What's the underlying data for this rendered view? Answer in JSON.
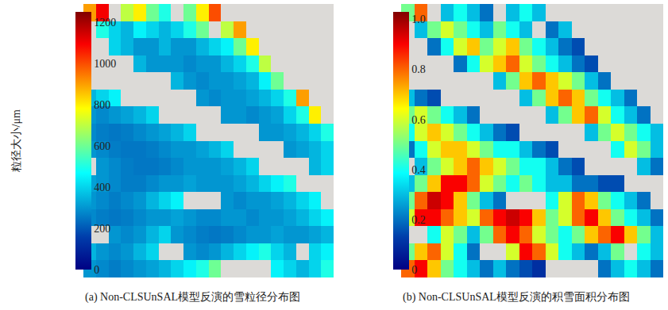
{
  "chart_data": [
    {
      "type": "heatmap",
      "title": "(a) Non-CLSUnSAL模型反演的雪粒径分布图",
      "colorbar_title": "粒径大小/μm",
      "colorbar_range": [
        0,
        1250
      ],
      "colorbar_ticks": [
        0,
        200,
        400,
        600,
        800,
        1000,
        1200
      ],
      "tick_labels": false,
      "cells": [
        [
          900,
          1100,
          null,
          700,
          800,
          600,
          500,
          null,
          600,
          800,
          1000,
          null,
          null,
          null,
          null,
          null,
          null,
          null,
          null,
          null
        ],
        [
          null,
          500,
          400,
          350,
          450,
          400,
          350,
          400,
          500,
          600,
          null,
          700,
          900,
          null,
          null,
          null,
          null,
          null,
          null,
          null
        ],
        [
          null,
          null,
          400,
          350,
          300,
          300,
          350,
          300,
          300,
          350,
          400,
          450,
          600,
          800,
          null,
          null,
          null,
          null,
          null,
          null
        ],
        [
          null,
          null,
          null,
          null,
          350,
          300,
          300,
          300,
          280,
          300,
          300,
          350,
          400,
          500,
          700,
          null,
          null,
          null,
          null,
          null
        ],
        [
          null,
          null,
          null,
          null,
          null,
          null,
          null,
          350,
          300,
          280,
          300,
          300,
          320,
          350,
          450,
          600,
          null,
          null,
          null,
          null
        ],
        [
          350,
          400,
          450,
          null,
          null,
          null,
          null,
          null,
          null,
          300,
          280,
          300,
          300,
          320,
          350,
          400,
          500,
          900,
          null,
          null
        ],
        [
          300,
          280,
          300,
          320,
          350,
          400,
          null,
          null,
          null,
          null,
          null,
          300,
          300,
          280,
          300,
          320,
          400,
          500,
          800,
          null
        ],
        [
          280,
          260,
          250,
          260,
          280,
          300,
          320,
          350,
          400,
          null,
          null,
          null,
          null,
          null,
          300,
          300,
          320,
          350,
          400,
          500
        ],
        [
          300,
          280,
          260,
          250,
          250,
          260,
          280,
          300,
          300,
          320,
          350,
          400,
          null,
          null,
          null,
          null,
          300,
          320,
          350,
          400
        ],
        [
          null,
          300,
          280,
          260,
          250,
          250,
          260,
          280,
          300,
          300,
          300,
          320,
          350,
          400,
          null,
          null,
          null,
          null,
          350,
          400
        ],
        [
          320,
          300,
          280,
          260,
          260,
          280,
          300,
          300,
          320,
          300,
          300,
          300,
          320,
          350,
          400,
          450,
          500,
          null,
          null,
          null
        ],
        [
          300,
          280,
          260,
          280,
          300,
          350,
          400,
          450,
          null,
          null,
          null,
          300,
          280,
          300,
          300,
          320,
          350,
          400,
          450,
          null
        ],
        [
          280,
          260,
          250,
          260,
          280,
          300,
          300,
          320,
          300,
          280,
          280,
          300,
          300,
          280,
          300,
          300,
          320,
          350,
          400,
          450
        ],
        [
          null,
          null,
          300,
          280,
          300,
          350,
          400,
          300,
          280,
          260,
          250,
          260,
          280,
          300,
          300,
          320,
          300,
          300,
          320,
          350
        ],
        [
          350,
          300,
          280,
          300,
          350,
          400,
          null,
          null,
          300,
          280,
          300,
          350,
          400,
          450,
          500,
          400,
          350,
          null,
          400,
          450
        ],
        [
          300,
          280,
          260,
          280,
          300,
          320,
          350,
          400,
          450,
          500,
          600,
          null,
          null,
          null,
          null,
          450,
          400,
          350,
          400,
          500
        ]
      ]
    },
    {
      "type": "heatmap",
      "title": "(b) Non-CLSUnSAL模型反演的积雪面积分布图",
      "colorbar_range": [
        0,
        1.03
      ],
      "colorbar_ticks": [
        0,
        0.2,
        0.4,
        0.6,
        0.8,
        {
          "value": 1,
          "label": "1.0"
        }
      ],
      "tick_labels": false,
      "cells": [
        [
          0.5,
          0.8,
          null,
          0.3,
          0.4,
          0.3,
          0.2,
          null,
          0.3,
          0.4,
          0.3,
          null,
          null,
          null,
          null,
          null,
          null,
          null,
          null,
          null
        ],
        [
          null,
          0.3,
          0.5,
          0.6,
          0.5,
          0.4,
          0.3,
          0.5,
          0.4,
          0.3,
          null,
          0.2,
          0.3,
          null,
          null,
          null,
          null,
          null,
          null,
          null
        ],
        [
          null,
          null,
          0.2,
          0.4,
          0.6,
          0.7,
          0.5,
          0.6,
          0.7,
          0.5,
          0.4,
          0.3,
          0.2,
          0.15,
          null,
          null,
          null,
          null,
          null,
          null
        ],
        [
          null,
          null,
          null,
          null,
          0.2,
          0.4,
          0.6,
          0.7,
          0.8,
          0.6,
          0.5,
          0.4,
          0.3,
          0.2,
          0.15,
          null,
          null,
          null,
          null,
          null
        ],
        [
          null,
          null,
          null,
          null,
          null,
          null,
          null,
          0.3,
          0.5,
          0.7,
          0.8,
          0.7,
          0.6,
          0.5,
          0.3,
          0.2,
          null,
          null,
          null,
          null
        ],
        [
          0.3,
          0.2,
          0.15,
          null,
          null,
          null,
          null,
          null,
          null,
          0.3,
          0.5,
          0.7,
          0.8,
          0.7,
          0.5,
          0.4,
          0.3,
          0.2,
          null,
          null
        ],
        [
          0.5,
          0.6,
          0.5,
          0.4,
          0.3,
          0.2,
          null,
          null,
          null,
          null,
          null,
          0.3,
          0.5,
          0.7,
          0.8,
          0.6,
          0.4,
          0.3,
          0.2,
          null
        ],
        [
          0.4,
          0.6,
          0.7,
          0.6,
          0.5,
          0.4,
          0.3,
          0.2,
          0.15,
          null,
          null,
          null,
          null,
          null,
          0.3,
          0.5,
          0.6,
          0.5,
          0.4,
          0.3
        ],
        [
          0.2,
          0.4,
          0.6,
          0.7,
          0.7,
          0.6,
          0.5,
          0.4,
          0.4,
          0.3,
          0.2,
          0.15,
          null,
          null,
          null,
          null,
          0.4,
          0.6,
          0.5,
          0.3
        ],
        [
          null,
          0.3,
          0.5,
          0.6,
          0.7,
          0.8,
          0.7,
          0.6,
          0.5,
          0.4,
          0.4,
          0.3,
          0.2,
          0.15,
          null,
          null,
          null,
          null,
          0.3,
          0.2
        ],
        [
          0.3,
          0.5,
          0.7,
          0.9,
          0.9,
          0.8,
          0.6,
          0.5,
          0.4,
          0.5,
          0.4,
          0.3,
          0.3,
          0.2,
          0.2,
          0.15,
          0.15,
          null,
          null,
          null
        ],
        [
          0.5,
          0.8,
          0.95,
          0.9,
          0.7,
          0.5,
          0.3,
          0.2,
          null,
          null,
          null,
          0.4,
          0.6,
          0.8,
          0.7,
          0.5,
          0.4,
          0.3,
          0.2,
          null
        ],
        [
          0.6,
          0.9,
          0.9,
          0.8,
          0.7,
          0.6,
          0.8,
          0.9,
          0.95,
          0.9,
          0.7,
          0.5,
          0.6,
          0.8,
          0.9,
          0.7,
          0.5,
          0.4,
          0.3,
          0.2
        ],
        [
          null,
          null,
          0.4,
          0.6,
          0.5,
          0.3,
          0.5,
          0.8,
          0.9,
          0.8,
          0.6,
          0.5,
          0.4,
          0.5,
          0.7,
          0.8,
          0.9,
          0.7,
          0.5,
          0.3
        ],
        [
          0.5,
          0.7,
          0.8,
          0.6,
          0.4,
          0.2,
          null,
          null,
          0.6,
          0.9,
          0.8,
          0.6,
          0.4,
          0.3,
          0.2,
          0.3,
          0.5,
          null,
          0.4,
          0.3
        ],
        [
          0.8,
          0.9,
          0.7,
          0.5,
          0.4,
          0.3,
          0.2,
          0.3,
          0.2,
          0.15,
          0.1,
          null,
          null,
          null,
          null,
          0.2,
          0.3,
          0.4,
          0.3,
          0.2
        ]
      ]
    }
  ]
}
